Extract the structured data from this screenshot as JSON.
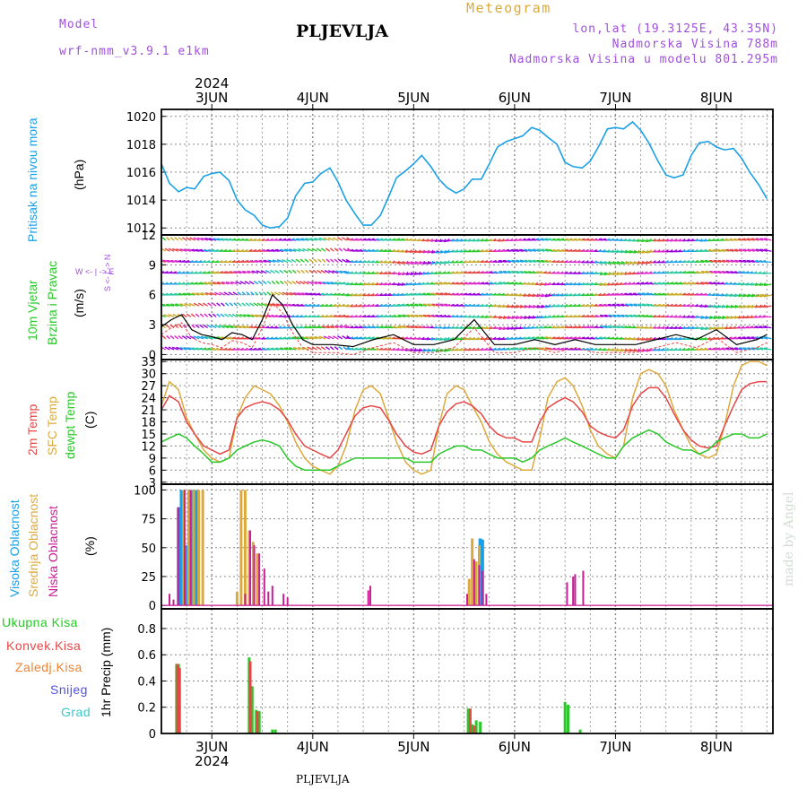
{
  "header": {
    "model_label": "Model",
    "model_name": "wrf-nmm_v3.9.1  e1km",
    "station": "PLJEVLJA",
    "product": "Meteogram",
    "lonlat": "lon,lat (19.3125E, 43.35N)",
    "elevation": "Nadmorska Visina 788m",
    "model_elevation": "Nadmorska Visina u modelu 801.295m"
  },
  "footer": {
    "station": "PLJEVLJA",
    "credit": "made by Angel"
  },
  "time_axis": {
    "year": "2024",
    "day_labels": [
      "3JUN",
      "4JUN",
      "5JUN",
      "6JUN",
      "7JUN",
      "8JUN"
    ]
  },
  "panel_labels": {
    "pressure": [
      "Pritisak na nivou mora",
      "(hPa)"
    ],
    "wind": [
      "10m Vjetar",
      "Brzina i Pravac",
      "(m/s)"
    ],
    "wind_compass": [
      "W  <- | ->  E",
      "S <- | -> N"
    ],
    "temp": [
      "2m Temp",
      "SFC Temp",
      "dewpt Temp",
      "(C)"
    ],
    "cloud": [
      "Visoka Oblacnost",
      "Srednja Oblacnost",
      "Niska Oblacnost",
      "(%)"
    ],
    "precip": [
      "Ukupna Kisa",
      "Konvek.Kisa",
      "Zaledj.Kisa",
      "Snijeg",
      "Grad",
      "1hr Precip (mm)"
    ]
  },
  "colors": {
    "pressure": "#1aa0e6",
    "t2m": "#e64646",
    "tsfc": "#dcaa3c",
    "dewpt": "#28c828",
    "high_cloud": "#1aa0e6",
    "mid_cloud": "#dcaa3c",
    "low_cloud": "#c81e96",
    "total_rain": "#28c828",
    "conv_rain": "#e64646",
    "freezing_rain": "#f08232",
    "snow": "#5050e6",
    "hail": "#3cc8c8",
    "model": "#a050dc"
  },
  "chart_data": [
    {
      "type": "line",
      "name": "pressure",
      "ylim": [
        1011.5,
        1020.5
      ],
      "yticks": [
        1012,
        1014,
        1016,
        1018,
        1020
      ],
      "x": [
        2.5,
        2.58,
        2.67,
        2.75,
        2.83,
        2.92,
        3.0,
        3.08,
        3.17,
        3.25,
        3.33,
        3.42,
        3.5,
        3.58,
        3.67,
        3.75,
        3.83,
        3.92,
        4.0,
        4.08,
        4.17,
        4.25,
        4.33,
        4.42,
        4.5,
        4.58,
        4.67,
        4.75,
        4.83,
        4.92,
        5.0,
        5.08,
        5.17,
        5.25,
        5.33,
        5.42,
        5.5,
        5.58,
        5.67,
        5.75,
        5.83,
        5.92,
        6.0,
        6.08,
        6.17,
        6.25,
        6.33,
        6.42,
        6.5,
        6.58,
        6.67,
        6.75,
        6.83,
        6.92,
        7.0,
        7.08,
        7.17,
        7.25,
        7.33,
        7.42,
        7.5,
        7.58,
        7.67,
        7.75,
        7.83,
        7.92,
        8.0,
        8.08,
        8.17,
        8.25,
        8.33,
        8.42,
        8.5
      ],
      "y": [
        1016.6,
        1015.2,
        1014.6,
        1014.9,
        1014.8,
        1015.7,
        1015.9,
        1016.0,
        1015.4,
        1014.0,
        1013.3,
        1012.9,
        1012.2,
        1012.0,
        1012.1,
        1012.7,
        1014.3,
        1015.2,
        1015.3,
        1015.9,
        1016.3,
        1015.3,
        1014.0,
        1013.0,
        1012.2,
        1012.2,
        1012.9,
        1014.2,
        1015.6,
        1016.1,
        1016.6,
        1017.2,
        1016.4,
        1015.5,
        1014.9,
        1014.5,
        1014.8,
        1015.5,
        1015.5,
        1016.6,
        1017.8,
        1018.2,
        1018.4,
        1018.6,
        1019.2,
        1019.0,
        1018.5,
        1018.0,
        1016.7,
        1016.4,
        1016.3,
        1016.8,
        1017.8,
        1019.1,
        1019.2,
        1019.1,
        1019.6,
        1019.0,
        1018.1,
        1016.8,
        1015.8,
        1015.6,
        1015.8,
        1017.2,
        1018.1,
        1018.2,
        1017.8,
        1017.6,
        1017.7,
        1017.0,
        1016.0,
        1015.1,
        1014.1
      ]
    },
    {
      "type": "vector",
      "name": "wind",
      "ylim": [
        -0.5,
        12
      ],
      "yticks": [
        0,
        3,
        6,
        9,
        12
      ],
      "series": [
        {
          "name": "speed",
          "x": [
            2.5,
            2.6,
            2.7,
            2.8,
            2.9,
            3.0,
            3.1,
            3.2,
            3.3,
            3.4,
            3.5,
            3.6,
            3.7,
            3.8,
            3.9,
            4.0,
            4.2,
            4.4,
            4.6,
            4.8,
            5.0,
            5.2,
            5.4,
            5.6,
            5.8,
            6.0,
            6.2,
            6.4,
            6.6,
            6.8,
            7.0,
            7.2,
            7.4,
            7.6,
            7.8,
            8.0,
            8.2,
            8.4,
            8.5
          ],
          "y": [
            2.8,
            3.5,
            4.0,
            2.5,
            2.0,
            1.8,
            1.5,
            2.2,
            2.0,
            1.5,
            3.5,
            6.0,
            5.0,
            3.0,
            1.5,
            1.0,
            1.0,
            0.8,
            1.5,
            2.0,
            1.0,
            1.0,
            1.5,
            3.5,
            1.0,
            1.0,
            1.5,
            1.0,
            1.5,
            1.0,
            1.0,
            1.0,
            1.5,
            2.0,
            1.5,
            2.5,
            1.0,
            1.5,
            2.0
          ]
        }
      ]
    },
    {
      "type": "line",
      "name": "temperature",
      "ylim": [
        2.5,
        33.5
      ],
      "yticks": [
        3,
        6,
        9,
        12,
        15,
        18,
        21,
        24,
        27,
        30,
        33
      ],
      "x": [
        2.5,
        2.58,
        2.67,
        2.75,
        2.83,
        2.92,
        3.0,
        3.08,
        3.17,
        3.25,
        3.33,
        3.42,
        3.5,
        3.58,
        3.67,
        3.75,
        3.83,
        3.92,
        4.0,
        4.08,
        4.17,
        4.25,
        4.33,
        4.42,
        4.5,
        4.58,
        4.67,
        4.75,
        4.83,
        4.92,
        5.0,
        5.08,
        5.17,
        5.25,
        5.33,
        5.42,
        5.5,
        5.58,
        5.67,
        5.75,
        5.83,
        5.92,
        6.0,
        6.08,
        6.17,
        6.25,
        6.33,
        6.42,
        6.5,
        6.58,
        6.67,
        6.75,
        6.83,
        6.92,
        7.0,
        7.08,
        7.17,
        7.25,
        7.33,
        7.42,
        7.5,
        7.58,
        7.67,
        7.75,
        7.83,
        7.92,
        8.0,
        8.08,
        8.17,
        8.25,
        8.33,
        8.42,
        8.5
      ],
      "series": [
        {
          "name": "2m Temp",
          "values": [
            21,
            24.5,
            23,
            18,
            15,
            12,
            11,
            10,
            11,
            19,
            21.5,
            22.5,
            23,
            22.5,
            21,
            18.5,
            15,
            12,
            11,
            10,
            9,
            11,
            15,
            19.5,
            21.5,
            22,
            21.5,
            18.5,
            15,
            12,
            10.5,
            10,
            11,
            17,
            20.5,
            22.5,
            23,
            22,
            20,
            17,
            15,
            14,
            14,
            13,
            13,
            18,
            21.5,
            23,
            24,
            23,
            20.5,
            17,
            15.5,
            14.5,
            14,
            16,
            22,
            25,
            26.5,
            26.5,
            24,
            20,
            16,
            13.5,
            12,
            11.5,
            12,
            17,
            22,
            26,
            27.5,
            28,
            28
          ]
        },
        {
          "name": "SFC Temp",
          "values": [
            22,
            28,
            26,
            19,
            15,
            11,
            9,
            8,
            9,
            19,
            24,
            27,
            26,
            25,
            22,
            18,
            13,
            9,
            7,
            6,
            5,
            7,
            12,
            21,
            26,
            27,
            25,
            19,
            13,
            8,
            6,
            5,
            6,
            17,
            25,
            27,
            26,
            22,
            18,
            13,
            10,
            8,
            7,
            6,
            6,
            14,
            24,
            28,
            29,
            27,
            22,
            16,
            12,
            10,
            9,
            12,
            24,
            30,
            31,
            30,
            27,
            21,
            16,
            12,
            10,
            9,
            10,
            17,
            27,
            32,
            33,
            33,
            32
          ]
        },
        {
          "name": "dewpt Temp",
          "values": [
            13,
            14,
            15,
            14,
            12,
            10,
            8,
            8,
            9,
            11,
            12,
            13,
            13.5,
            13,
            12,
            9,
            7,
            6,
            6,
            6,
            6,
            7,
            8,
            9,
            9,
            9,
            9,
            9,
            9,
            9,
            8,
            8,
            8,
            10,
            11,
            12,
            12,
            11,
            11,
            10,
            9,
            9,
            9,
            8,
            9,
            11,
            12,
            13,
            14,
            13,
            12,
            11,
            10,
            9,
            9,
            12,
            14,
            15,
            16,
            15,
            13,
            12,
            11,
            11,
            10,
            11,
            13,
            14,
            15,
            15,
            14,
            14,
            15
          ]
        }
      ]
    },
    {
      "type": "bar",
      "name": "cloud",
      "ylim": [
        -3,
        105
      ],
      "yticks": [
        0,
        25,
        50,
        75,
        100
      ],
      "series": [
        {
          "name": "Visoka Oblacnost",
          "x": [
            2.67,
            2.7,
            2.75,
            2.8,
            2.85,
            5.66,
            5.68
          ],
          "values": [
            85,
            100,
            52,
            100,
            100,
            58,
            57
          ]
        },
        {
          "name": "Srednja Oblacnost",
          "x": [
            2.72,
            2.77,
            2.82,
            2.87,
            2.91,
            3.25,
            3.29,
            3.33,
            3.37,
            3.41,
            3.45,
            5.55,
            5.58,
            5.62,
            5.65
          ],
          "values": [
            100,
            100,
            100,
            100,
            100,
            12,
            100,
            100,
            65,
            55,
            45,
            23,
            58,
            38,
            52
          ]
        },
        {
          "name": "Niska Oblacnost",
          "x": [
            2.58,
            2.62,
            2.67,
            2.73,
            2.79,
            3.33,
            3.38,
            3.42,
            3.47,
            3.52,
            3.56,
            3.6,
            3.71,
            3.75,
            4.55,
            4.57,
            5.53,
            5.6,
            5.65,
            5.68,
            5.72,
            6.52,
            6.58,
            6.6,
            6.68
          ],
          "values": [
            10,
            5,
            85,
            100,
            100,
            10,
            65,
            52,
            45,
            32,
            12,
            17,
            10,
            7,
            13,
            17,
            10,
            40,
            35,
            30,
            10,
            20,
            25,
            27,
            30
          ]
        }
      ]
    },
    {
      "type": "bar",
      "name": "precip",
      "ylim": [
        0,
        0.95
      ],
      "yticks": [
        0,
        0.2,
        0.4,
        0.6,
        0.8
      ],
      "series": [
        {
          "name": "Ukupna Kisa",
          "x": [
            2.65,
            2.67,
            3.37,
            3.4,
            3.44,
            3.47,
            3.6,
            3.63,
            5.54,
            5.58,
            5.62,
            5.66,
            6.5,
            6.53,
            6.65
          ],
          "values": [
            0.53,
            0.53,
            0.58,
            0.36,
            0.18,
            0.17,
            0.03,
            0.03,
            0.19,
            0.07,
            0.1,
            0.09,
            0.24,
            0.22,
            0.03
          ]
        },
        {
          "name": "Konvek.Kisa",
          "x": [
            2.66,
            2.68,
            3.38,
            3.45,
            5.56,
            5.6
          ],
          "values": [
            0.53,
            0.5,
            0.55,
            0.17,
            0.19,
            0.06
          ]
        }
      ]
    }
  ]
}
